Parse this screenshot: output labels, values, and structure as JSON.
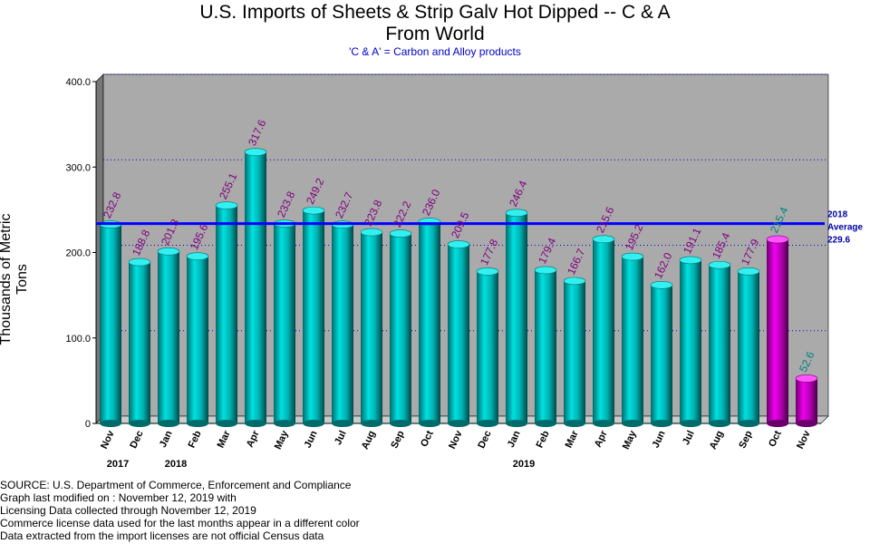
{
  "chart_data": {
    "type": "bar",
    "title": [
      "U.S. Imports of Sheets & Strip Galv Hot Dipped -- C & A",
      "From World"
    ],
    "subtitle": "'C & A' = Carbon and Alloy products",
    "ylabel": "Thousands of Metric Tons",
    "ylim": [
      0,
      400
    ],
    "yticks": [
      "0",
      "100.0",
      "200.0",
      "300.0",
      "400.0"
    ],
    "grid": true,
    "categories": [
      "Nov",
      "Dec",
      "Jan",
      "Feb",
      "Mar",
      "Apr",
      "May",
      "Jun",
      "Jul",
      "Aug",
      "Sep",
      "Oct",
      "Nov",
      "Dec",
      "Jan",
      "Feb",
      "Mar",
      "Apr",
      "May",
      "Jun",
      "Jul",
      "Aug",
      "Sep",
      "Oct",
      "Nov"
    ],
    "values": [
      232.8,
      188.8,
      201.3,
      195.6,
      255.1,
      317.6,
      233.8,
      249.2,
      232.7,
      223.8,
      222.2,
      236.0,
      209.5,
      177.8,
      246.4,
      179.4,
      166.7,
      215.6,
      195.2,
      162.0,
      191.1,
      185.4,
      177.9,
      215.4,
      52.6
    ],
    "value_labels": [
      "232.8",
      "188.8",
      "201.3",
      "195.6",
      "255.1",
      "317.6",
      "233.8",
      "249.2",
      "232.7",
      "223.8",
      "222.2",
      "236.0",
      "209.5",
      "177.8",
      "246.4",
      "179.4",
      "166.7",
      "215.6",
      "195.2",
      "162.0",
      "191.1",
      "185.4",
      "177.9",
      "215.4",
      "52.6"
    ],
    "license_data_from_index": 23,
    "year_labels": [
      {
        "index": 0,
        "label": "2017"
      },
      {
        "index": 2,
        "label": "2018"
      },
      {
        "index": 14,
        "label": "2019"
      }
    ],
    "average": {
      "value": 229.6,
      "label_lines": [
        "2018",
        "Average",
        "229.6"
      ]
    },
    "colors": {
      "bar_census": "#00c8c8",
      "bar_license": "#cc00cc",
      "label_census": "#800080",
      "label_license": "#008080",
      "plot_background": "#aaaaaa",
      "grid": "#0000cc",
      "average_line": "#0000ff"
    }
  },
  "footer": {
    "lines": [
      "SOURCE: U.S. Department of Commerce, Enforcement and Compliance",
      "Graph last modified on : November 12, 2019  with",
      "Licensing Data collected through November 12, 2019",
      "Commerce license data used for the last months appear in a different color",
      "Data extracted from the import licenses are not official Census data"
    ]
  }
}
